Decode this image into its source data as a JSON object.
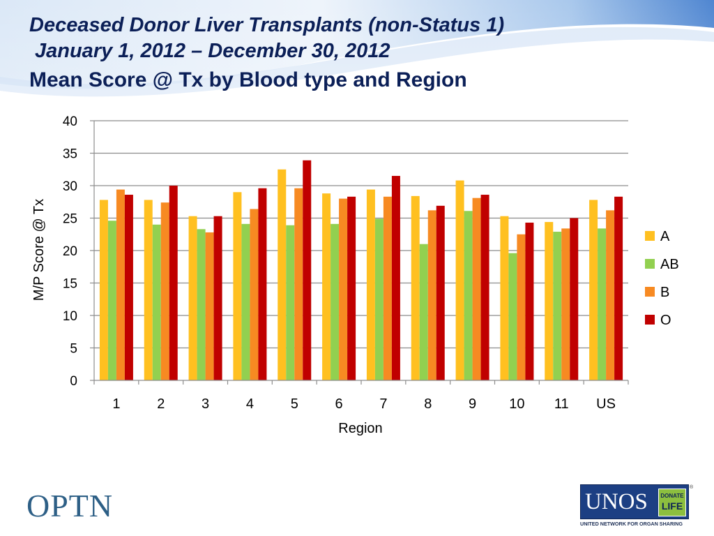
{
  "header": {
    "title_line1": "Deceased Donor Liver Transplants (non-Status 1)",
    "title_line2": "January 1, 2012 – December 30, 2012",
    "title_line3": "Mean Score @ Tx by Blood type and Region"
  },
  "chart_data": {
    "type": "bar",
    "xlabel": "Region",
    "ylabel": "M/P Score @ Tx",
    "ylim": [
      0,
      40
    ],
    "yticks": [
      0,
      5,
      10,
      15,
      20,
      25,
      30,
      35,
      40
    ],
    "grid": true,
    "legend_position": "right",
    "categories": [
      "1",
      "2",
      "3",
      "4",
      "5",
      "6",
      "7",
      "8",
      "9",
      "10",
      "11",
      "US"
    ],
    "series": [
      {
        "name": "A",
        "color": "#FFC020",
        "values": [
          27.8,
          27.8,
          25.3,
          29.0,
          32.5,
          28.8,
          29.4,
          28.4,
          30.8,
          25.3,
          24.4,
          27.8
        ]
      },
      {
        "name": "AB",
        "color": "#92D050",
        "values": [
          24.6,
          24.0,
          23.3,
          24.1,
          23.9,
          24.1,
          24.9,
          21.0,
          26.1,
          19.6,
          22.9,
          23.4
        ]
      },
      {
        "name": "B",
        "color": "#F78A22",
        "values": [
          29.4,
          27.4,
          22.8,
          26.4,
          29.6,
          28.0,
          28.3,
          26.2,
          28.1,
          22.5,
          23.4,
          26.2
        ]
      },
      {
        "name": "O",
        "color": "#C00000",
        "values": [
          28.6,
          30.0,
          25.3,
          29.6,
          33.9,
          28.3,
          31.5,
          26.9,
          28.6,
          24.3,
          25.0,
          28.3
        ]
      }
    ]
  },
  "footer": {
    "optn_logo": "OPTN",
    "unos_logo": "UNOS",
    "donate_line1": "DONATE",
    "donate_line2": "LIFE",
    "unos_subtitle": "UNITED NETWORK FOR ORGAN SHARING",
    "registered": "®"
  }
}
